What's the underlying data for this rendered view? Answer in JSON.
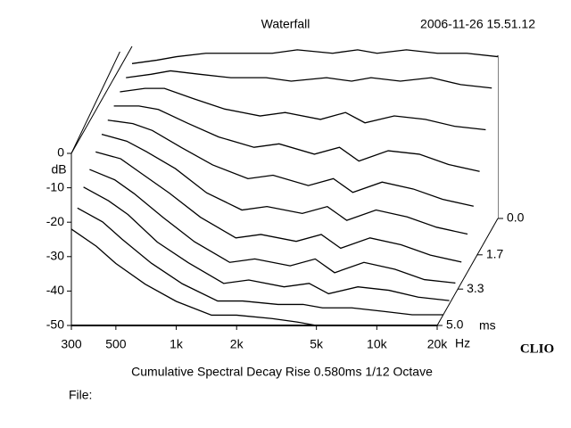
{
  "chart_data": {
    "type": "waterfall",
    "title": "Waterfall",
    "timestamp": "2006-11-26 15.51.12",
    "subtitle": "Cumulative Spectral Decay   Rise 0.580ms   1/12 Octave",
    "file_label": "File:",
    "brand": "CLIO",
    "ylabel": "dB",
    "xunit": "Hz",
    "tunit": "ms",
    "log_x": true,
    "x": [
      300,
      400,
      500,
      700,
      1000,
      1500,
      2000,
      3000,
      4000,
      5000,
      7000,
      10000,
      14000,
      20000
    ],
    "slices": [
      {
        "t": 0,
        "values": [
          -5,
          -4,
          -3,
          -2,
          -2,
          -2,
          -1,
          -2,
          -1,
          -2,
          -1,
          -2,
          -2,
          -3
        ]
      },
      {
        "t": 0.5,
        "values": [
          -6,
          -5,
          -4,
          -5,
          -6,
          -6,
          -7,
          -6,
          -7,
          -6,
          -7,
          -6,
          -8,
          -9
        ]
      },
      {
        "t": 1,
        "values": [
          -7,
          -6,
          -6,
          -9,
          -12,
          -14,
          -13,
          -15,
          -13,
          -16,
          -14,
          -15,
          -17,
          -18
        ]
      },
      {
        "t": 1.5,
        "values": [
          -8,
          -8,
          -9,
          -13,
          -17,
          -20,
          -19,
          -22,
          -20,
          -24,
          -21,
          -22,
          -25,
          -27
        ]
      },
      {
        "t": 2,
        "values": [
          -9,
          -10,
          -12,
          -17,
          -22,
          -26,
          -25,
          -28,
          -26,
          -30,
          -27,
          -29,
          -32,
          -34
        ]
      },
      {
        "t": 2.5,
        "values": [
          -10,
          -12,
          -15,
          -20,
          -27,
          -32,
          -31,
          -33,
          -31,
          -35,
          -32,
          -34,
          -37,
          -39
        ]
      },
      {
        "t": 3,
        "values": [
          -12,
          -14,
          -18,
          -24,
          -31,
          -37,
          -36,
          -38,
          -36,
          -40,
          -37,
          -39,
          -42,
          -44
        ]
      },
      {
        "t": 3.5,
        "values": [
          -14,
          -17,
          -21,
          -28,
          -35,
          -41,
          -40,
          -42,
          -40,
          -44,
          -41,
          -43,
          -46,
          -47
        ]
      },
      {
        "t": 4,
        "values": [
          -16,
          -20,
          -24,
          -32,
          -38,
          -44,
          -43,
          -45,
          -44,
          -47,
          -45,
          -46,
          -48,
          -49
        ]
      },
      {
        "t": 4.5,
        "values": [
          -19,
          -23,
          -28,
          -35,
          -41,
          -46,
          -46,
          -47,
          -47,
          -48,
          -48,
          -49,
          -50,
          -50
        ]
      },
      {
        "t": 5,
        "values": [
          -22,
          -27,
          -32,
          -38,
          -43,
          -47,
          -47,
          -48,
          -49,
          -50,
          -50,
          -50,
          -50,
          -50
        ]
      }
    ],
    "xlim": [
      300,
      20000
    ],
    "xticks": [
      300,
      500,
      {
        "value": 1000,
        "label": "1k"
      },
      {
        "value": 2000,
        "label": "2k"
      },
      {
        "value": 5000,
        "label": "5k"
      },
      {
        "value": 10000,
        "label": "10k"
      },
      {
        "value": 20000,
        "label": "20k"
      }
    ],
    "ylim": [
      -50,
      0
    ],
    "yticks": [
      0,
      -10,
      -20,
      -30,
      -40,
      -50
    ],
    "tlim": [
      0,
      5
    ],
    "tticks": [
      {
        "value": 0,
        "label": "0.0"
      },
      1.7,
      3.3,
      {
        "value": 5,
        "label": "5.0"
      }
    ],
    "color": "#000000"
  }
}
